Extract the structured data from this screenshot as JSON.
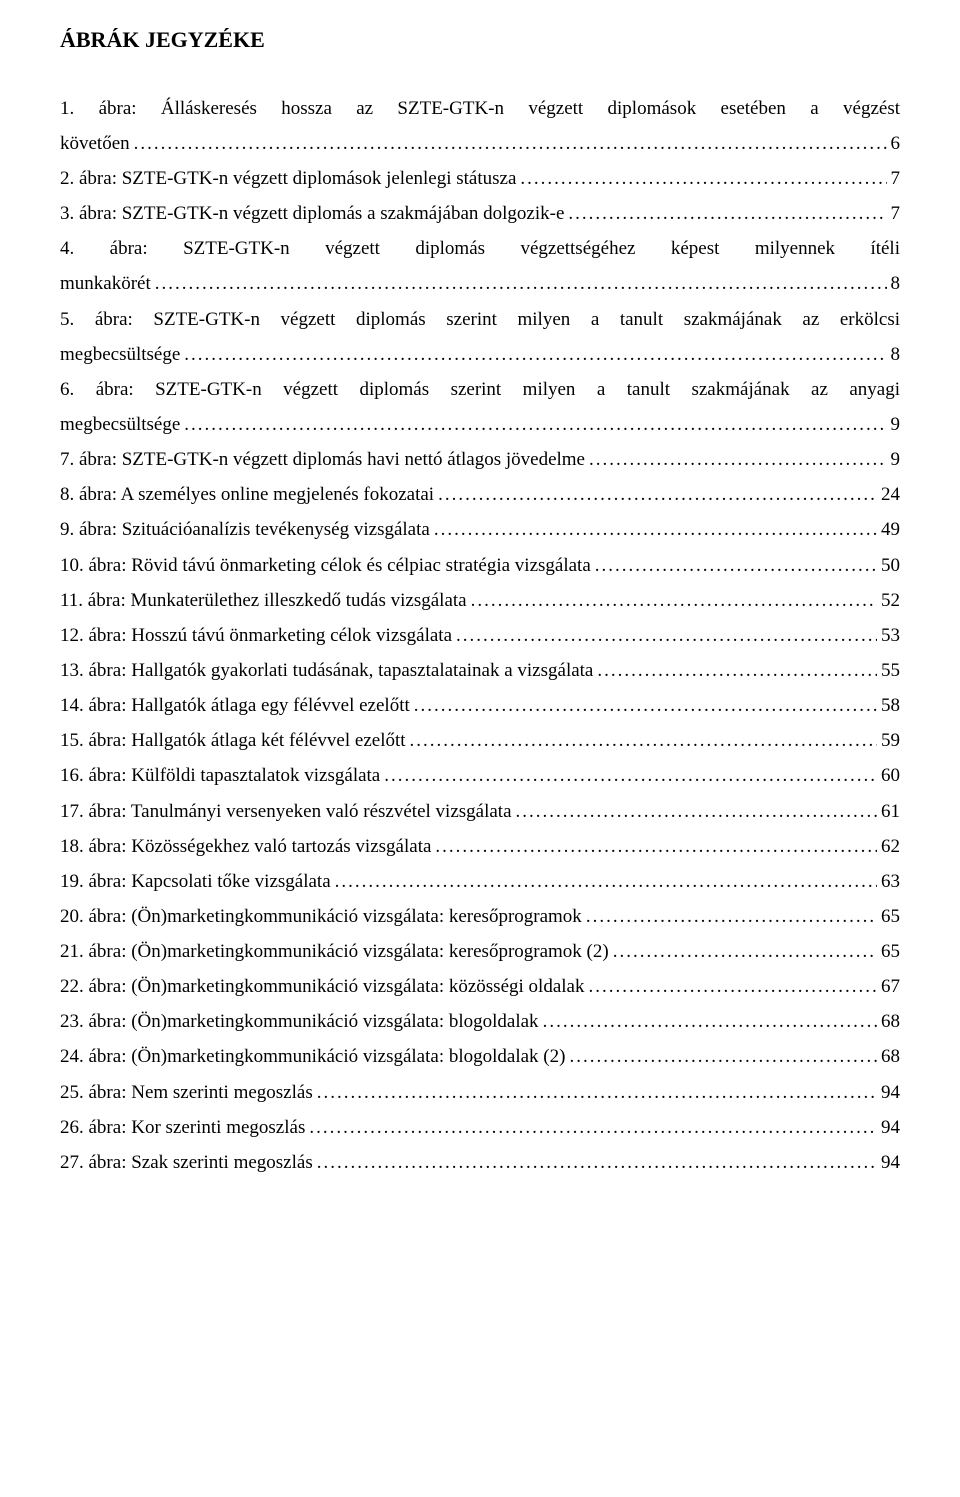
{
  "title": "ÁBRÁK JEGYZÉKE",
  "entries": [
    {
      "num": "1.",
      "text_lines": [
        "ábra: Álláskeresés hossza az SZTE-GTK-n végzett diplomások esetében a végzést",
        "követően"
      ],
      "page": "6"
    },
    {
      "num": "2.",
      "text_lines": [
        "ábra: SZTE-GTK-n végzett diplomások jelenlegi státusza"
      ],
      "page": "7"
    },
    {
      "num": "3.",
      "text_lines": [
        "ábra: SZTE-GTK-n végzett diplomás a szakmájában dolgozik-e"
      ],
      "page": "7"
    },
    {
      "num": "4.",
      "text_lines": [
        "ábra: SZTE-GTK-n végzett diplomás végzettségéhez képest milyennek ítéli",
        "munkakörét"
      ],
      "page": "8"
    },
    {
      "num": "5.",
      "text_lines": [
        "ábra: SZTE-GTK-n végzett diplomás szerint milyen a tanult szakmájának az erkölcsi",
        "megbecsültsége"
      ],
      "page": "8"
    },
    {
      "num": "6.",
      "text_lines": [
        "ábra: SZTE-GTK-n végzett diplomás szerint milyen a tanult szakmájának az anyagi",
        "megbecsültsége"
      ],
      "page": "9"
    },
    {
      "num": "7.",
      "text_lines": [
        "ábra: SZTE-GTK-n végzett diplomás havi nettó átlagos jövedelme"
      ],
      "page": "9"
    },
    {
      "num": "8.",
      "text_lines": [
        "ábra: A személyes online megjelenés fokozatai"
      ],
      "page": "24"
    },
    {
      "num": "9.",
      "text_lines": [
        "ábra: Szituációanalízis tevékenység vizsgálata"
      ],
      "page": "49"
    },
    {
      "num": "10.",
      "text_lines": [
        "ábra: Rövid távú önmarketing célok és célpiac stratégia vizsgálata"
      ],
      "page": "50"
    },
    {
      "num": "11.",
      "text_lines": [
        "ábra: Munkaterülethez illeszkedő tudás vizsgálata"
      ],
      "page": "52"
    },
    {
      "num": "12.",
      "text_lines": [
        "ábra: Hosszú távú önmarketing célok vizsgálata"
      ],
      "page": "53"
    },
    {
      "num": "13.",
      "text_lines": [
        "ábra: Hallgatók gyakorlati tudásának, tapasztalatainak a vizsgálata"
      ],
      "page": "55"
    },
    {
      "num": "14.",
      "text_lines": [
        "ábra: Hallgatók átlaga egy félévvel ezelőtt"
      ],
      "page": "58"
    },
    {
      "num": "15.",
      "text_lines": [
        "ábra: Hallgatók átlaga két félévvel ezelőtt"
      ],
      "page": "59"
    },
    {
      "num": "16.",
      "text_lines": [
        "ábra: Külföldi tapasztalatok vizsgálata"
      ],
      "page": "60"
    },
    {
      "num": "17.",
      "text_lines": [
        "ábra: Tanulmányi versenyeken való részvétel vizsgálata"
      ],
      "page": "61"
    },
    {
      "num": "18.",
      "text_lines": [
        "ábra: Közösségekhez való tartozás vizsgálata"
      ],
      "page": "62"
    },
    {
      "num": "19.",
      "text_lines": [
        "ábra: Kapcsolati tőke vizsgálata"
      ],
      "page": "63"
    },
    {
      "num": "20.",
      "text_lines": [
        "ábra: (Ön)marketingkommunikáció vizsgálata: keresőprogramok"
      ],
      "page": "65"
    },
    {
      "num": "21.",
      "text_lines": [
        "ábra: (Ön)marketingkommunikáció vizsgálata: keresőprogramok (2)"
      ],
      "page": "65"
    },
    {
      "num": "22.",
      "text_lines": [
        "ábra: (Ön)marketingkommunikáció vizsgálata: közösségi oldalak"
      ],
      "page": "67"
    },
    {
      "num": "23.",
      "text_lines": [
        "ábra: (Ön)marketingkommunikáció vizsgálata: blogoldalak"
      ],
      "page": "68"
    },
    {
      "num": "24.",
      "text_lines": [
        "ábra: (Ön)marketingkommunikáció vizsgálata: blogoldalak (2)"
      ],
      "page": "68"
    },
    {
      "num": "25.",
      "text_lines": [
        "ábra: Nem szerinti megoszlás"
      ],
      "page": "94"
    },
    {
      "num": "26.",
      "text_lines": [
        "ábra: Kor szerinti megoszlás"
      ],
      "page": "94"
    },
    {
      "num": "27.",
      "text_lines": [
        "ábra: Szak szerinti megoszlás"
      ],
      "page": "94"
    }
  ]
}
